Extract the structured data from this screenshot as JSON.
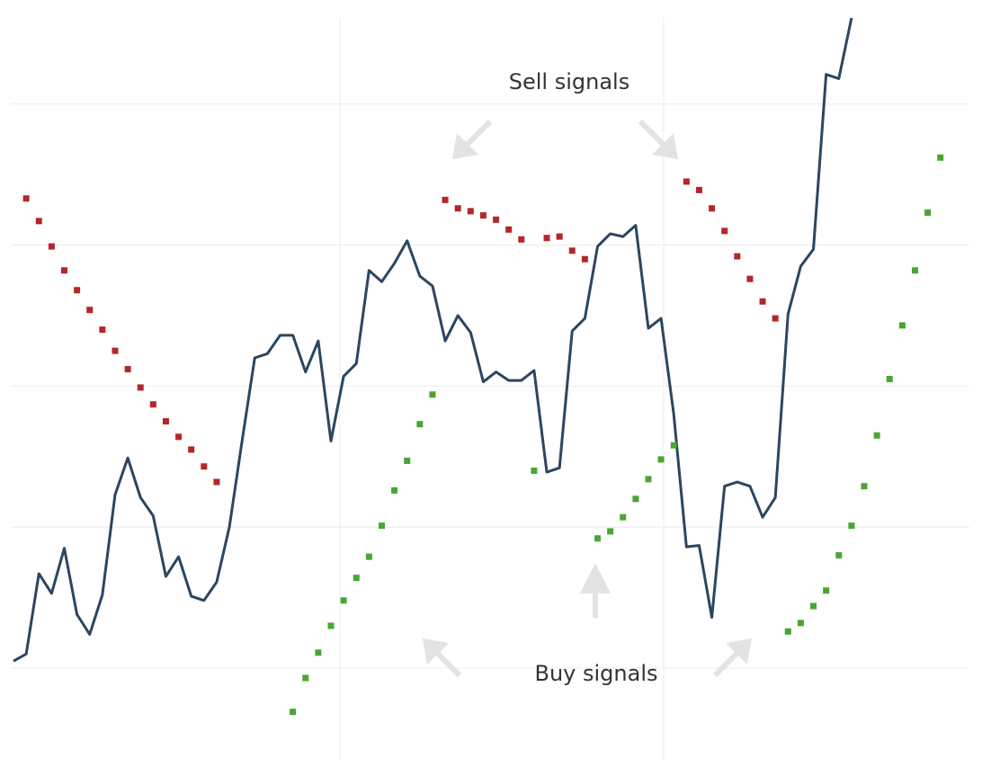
{
  "chart_data": {
    "type": "line",
    "annotations": [
      {
        "text": "Sell signals"
      },
      {
        "text": "Buy signals"
      }
    ],
    "xlim": [
      -0.2,
      75.3
    ],
    "xticks": [
      25.7,
      51.2
    ],
    "ylim": [
      -65,
      461
    ],
    "yticks": [
      0,
      100,
      200,
      300,
      400
    ],
    "grid": true,
    "series": [
      {
        "type": "line",
        "color": "#2b4661",
        "x": [
          0,
          1,
          2,
          3,
          4,
          5,
          6,
          7,
          8,
          9,
          10,
          11,
          12,
          13,
          14,
          15,
          16,
          17,
          18,
          19,
          20,
          21,
          22,
          23,
          24,
          25,
          26,
          27,
          28,
          29,
          30,
          31,
          32,
          33,
          34,
          35,
          36,
          37,
          38,
          39,
          40,
          41,
          42,
          43,
          44,
          45,
          46,
          47,
          48,
          49,
          50,
          51,
          52,
          53,
          54,
          55,
          56,
          57,
          58,
          59,
          60,
          61,
          62,
          63,
          64,
          65,
          66
        ],
        "values": [
          5,
          10,
          67,
          53,
          85,
          38,
          24,
          52,
          123,
          149,
          121,
          108,
          65,
          79,
          51,
          48,
          61,
          100,
          161,
          220,
          223,
          236,
          236,
          210,
          232,
          161,
          207,
          216,
          282,
          274,
          287,
          303,
          278,
          271,
          232,
          250,
          238,
          203,
          210,
          204,
          204,
          211,
          139,
          142,
          239,
          248,
          299,
          308,
          306,
          314,
          241,
          248,
          180,
          86,
          87,
          36,
          129,
          132,
          129,
          107,
          121,
          251,
          285,
          297,
          421,
          418,
          461
        ]
      },
      {
        "type": "scatter",
        "color": "#b3262a",
        "x": [
          1,
          2,
          3,
          4,
          5,
          6,
          7,
          8,
          9,
          10,
          11,
          12,
          13,
          14,
          15,
          16,
          34,
          35,
          36,
          37,
          38,
          39,
          40,
          42,
          43,
          44,
          45,
          53,
          54,
          55,
          56,
          57,
          58,
          59,
          60
        ],
        "values": [
          333,
          317,
          299,
          282,
          268,
          254,
          240,
          225,
          212,
          199,
          187,
          175,
          164,
          155,
          143,
          132,
          332,
          326,
          324,
          321,
          318,
          311,
          304,
          305,
          306,
          296,
          290,
          345,
          339,
          326,
          310,
          292,
          276,
          260,
          248
        ]
      },
      {
        "type": "scatter",
        "color": "#4aa531",
        "x": [
          22,
          23,
          24,
          25,
          26,
          27,
          28,
          29,
          30,
          31,
          32,
          33,
          41,
          46,
          47,
          48,
          49,
          50,
          51,
          52,
          61,
          62,
          63,
          64,
          65,
          66,
          67,
          68,
          69,
          70,
          71,
          72,
          73
        ],
        "values": [
          -31,
          -7,
          11,
          30,
          48,
          64,
          79,
          101,
          126,
          147,
          173,
          194,
          140,
          92,
          97,
          107,
          120,
          134,
          148,
          158,
          26,
          32,
          44,
          55,
          80,
          101,
          129,
          165,
          205,
          243,
          282,
          323,
          362
        ]
      }
    ]
  }
}
